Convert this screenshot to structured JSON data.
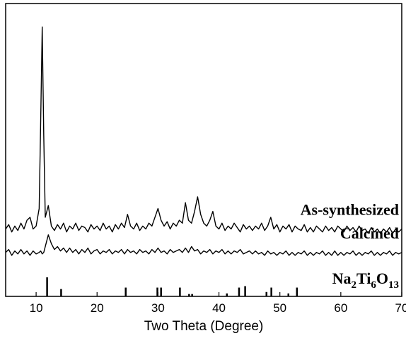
{
  "chart_data": {
    "type": "line",
    "xlabel": "Two Theta (Degree)",
    "xlim": [
      5,
      70
    ],
    "xticks": [
      10,
      20,
      30,
      40,
      50,
      60,
      70
    ],
    "ylim": [
      0,
      100
    ],
    "x": [
      5,
      5.5,
      6,
      6.5,
      7,
      7.5,
      8,
      8.5,
      9,
      9.5,
      10,
      10.5,
      10.75,
      11,
      11.25,
      11.5,
      12,
      12.5,
      13,
      13.5,
      14,
      14.5,
      15,
      15.5,
      16,
      16.5,
      17,
      17.5,
      18,
      18.5,
      19,
      19.5,
      20,
      20.5,
      21,
      21.5,
      22,
      22.5,
      23,
      23.5,
      24,
      24.5,
      25,
      25.5,
      26,
      26.5,
      27,
      27.5,
      28,
      28.5,
      29,
      29.5,
      30,
      30.5,
      31,
      31.5,
      32,
      32.5,
      33,
      33.5,
      34,
      34.5,
      35,
      35.5,
      36,
      36.5,
      37,
      37.5,
      38,
      38.5,
      39,
      39.5,
      40,
      40.5,
      41,
      41.5,
      42,
      42.5,
      43,
      43.5,
      44,
      44.5,
      45,
      45.5,
      46,
      46.5,
      47,
      47.5,
      48,
      48.5,
      49,
      49.5,
      50,
      50.5,
      51,
      51.5,
      52,
      52.5,
      53,
      53.5,
      54,
      54.5,
      55,
      55.5,
      56,
      56.5,
      57,
      57.5,
      58,
      58.5,
      59,
      59.5,
      60,
      60.5,
      61,
      61.5,
      62,
      62.5,
      63,
      63.5,
      64,
      64.5,
      65,
      65.5,
      66,
      66.5,
      67,
      67.5,
      68,
      68.5,
      69,
      69.5,
      70
    ],
    "series": [
      {
        "name": "As-synthesized",
        "color": "#000000",
        "values": [
          23,
          24.5,
          22,
          24,
          22.5,
          25,
          23,
          26,
          27,
          23,
          24,
          30,
          60,
          92,
          55,
          27,
          31,
          24,
          22.5,
          24.5,
          23,
          25,
          22,
          24,
          23,
          25,
          22.5,
          24,
          23.5,
          22,
          24.5,
          23,
          24,
          22.5,
          25,
          23,
          24,
          22,
          24.5,
          23,
          25,
          23.5,
          28,
          24,
          23,
          25,
          22.5,
          24,
          23,
          25,
          24,
          27,
          30,
          26,
          24,
          25.5,
          23,
          25,
          24,
          26,
          25,
          32,
          26,
          25,
          29,
          34,
          28,
          25,
          24,
          26,
          29,
          24,
          23,
          25,
          22.5,
          24,
          23,
          25,
          23.5,
          22,
          24.5,
          23,
          24,
          22.5,
          24,
          23,
          25,
          22.5,
          24,
          27,
          23,
          24.5,
          22,
          24,
          23,
          24.5,
          22,
          24,
          23,
          22.5,
          24.5,
          22,
          23.5,
          22,
          24,
          23,
          22,
          24,
          22.5,
          23.5,
          22,
          24,
          23,
          22,
          24,
          22.5,
          23.5,
          22,
          24,
          22.5,
          23,
          21.5,
          23.5,
          22,
          23,
          21.5,
          23,
          22,
          23.5,
          21.5,
          23,
          22,
          23
        ]
      },
      {
        "name": "Calcined",
        "color": "#000000",
        "values": [
          15,
          16,
          14,
          15.5,
          14.5,
          16,
          14.5,
          15.5,
          14,
          15.5,
          14.5,
          15,
          15.5,
          14.5,
          15,
          17,
          21,
          18,
          16,
          17,
          15.5,
          16.5,
          15,
          16.5,
          15,
          16,
          14.5,
          16,
          15,
          16.5,
          14.5,
          15.5,
          16,
          14.5,
          15.5,
          15,
          16,
          14.5,
          15.5,
          15,
          16,
          14.5,
          16,
          15,
          15.5,
          14.5,
          16,
          15,
          15.5,
          14.5,
          16,
          15,
          16.5,
          15,
          15.5,
          14.5,
          16,
          15,
          15.5,
          16,
          15,
          16.5,
          15,
          17,
          15.5,
          16,
          14.5,
          15.5,
          15,
          16,
          14.5,
          15.5,
          15,
          16,
          14.5,
          15.5,
          14.5,
          15.5,
          15,
          16,
          14.5,
          15,
          15.5,
          14.5,
          15.5,
          14.5,
          15,
          14,
          15.5,
          14.5,
          15,
          14,
          15,
          14.5,
          15.5,
          14,
          15,
          14,
          15,
          14.5,
          15.5,
          14,
          15,
          14,
          15,
          14.5,
          15.5,
          14,
          15,
          14,
          15.5,
          14,
          15,
          14,
          15,
          14.5,
          15.5,
          14,
          15,
          14,
          15,
          14.5,
          15.5,
          14,
          15,
          14,
          15,
          14.5,
          15.5,
          14,
          15,
          14.5,
          15
        ]
      }
    ],
    "reference": {
      "name": "Na2Ti6O13",
      "color": "#000000",
      "x": [
        11.8,
        14.1,
        24.7,
        29.9,
        30.5,
        33.6,
        35.1,
        35.6,
        41.3,
        43.3,
        44.3,
        47.8,
        48.6,
        51.4,
        52.8
      ],
      "values": [
        6.5,
        2.5,
        3,
        3,
        3,
        3,
        0.8,
        0.8,
        1,
        3,
        3.5,
        1.5,
        3,
        1,
        3
      ]
    }
  }
}
